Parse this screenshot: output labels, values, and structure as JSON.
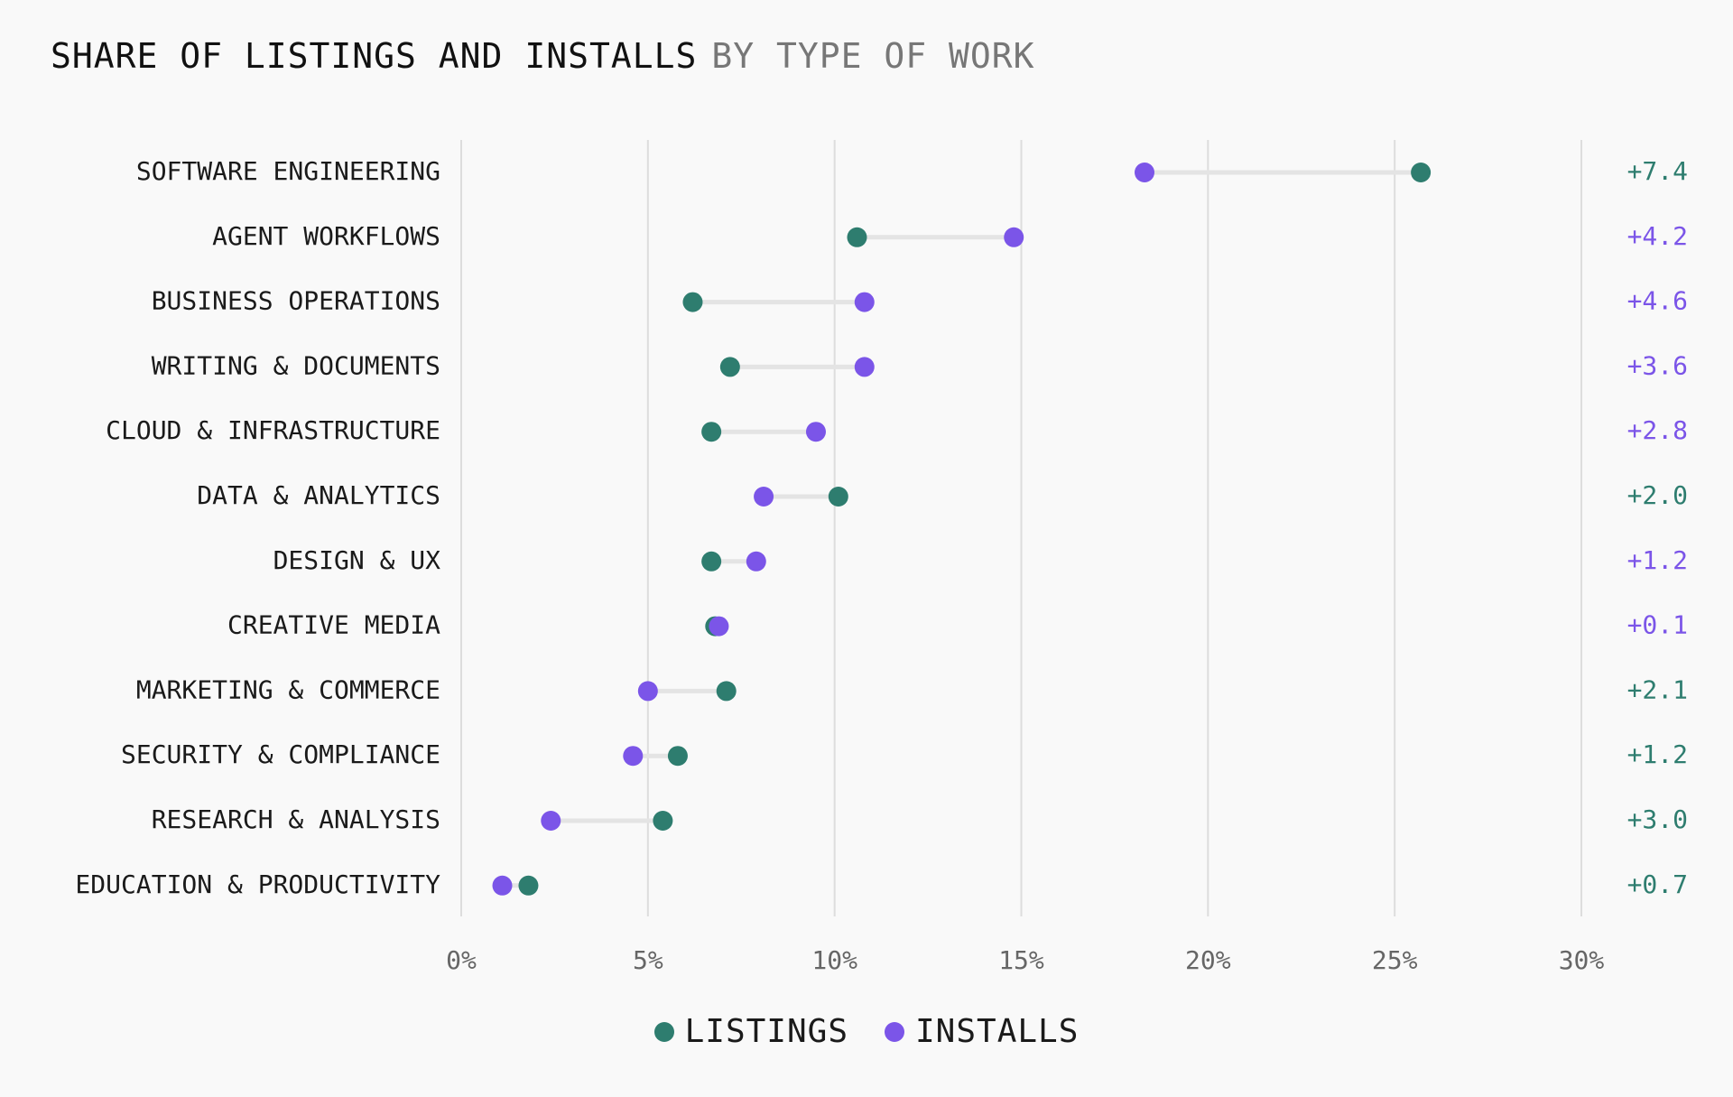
{
  "title": {
    "main": "SHARE OF LISTINGS AND INSTALLS",
    "sub": "BY TYPE OF WORK"
  },
  "colors": {
    "listings": "#2e7d6f",
    "installs": "#7b55e8",
    "connector": "#e4e4e4",
    "grid": "#dddddd"
  },
  "legend": {
    "listings_label": "LISTINGS",
    "installs_label": "INSTALLS"
  },
  "chart_data": {
    "type": "dumbbell",
    "title": "SHARE OF LISTINGS AND INSTALLS BY TYPE OF WORK",
    "xlabel": "",
    "ylabel": "",
    "xlim": [
      0,
      30
    ],
    "x_ticks": [
      0,
      5,
      10,
      15,
      20,
      25,
      30
    ],
    "x_tick_labels": [
      "0%",
      "5%",
      "10%",
      "15%",
      "20%",
      "25%",
      "30%"
    ],
    "grid": true,
    "legend_position": "bottom-center",
    "categories": [
      "SOFTWARE ENGINEERING",
      "AGENT WORKFLOWS",
      "BUSINESS OPERATIONS",
      "WRITING & DOCUMENTS",
      "CLOUD & INFRASTRUCTURE",
      "DATA & ANALYTICS",
      "DESIGN & UX",
      "CREATIVE MEDIA",
      "MARKETING & COMMERCE",
      "SECURITY & COMPLIANCE",
      "RESEARCH & ANALYSIS",
      "EDUCATION & PRODUCTIVITY"
    ],
    "series": [
      {
        "name": "LISTINGS",
        "values": [
          25.7,
          10.6,
          6.2,
          7.2,
          6.7,
          10.1,
          6.7,
          6.8,
          7.1,
          5.8,
          5.4,
          1.8
        ]
      },
      {
        "name": "INSTALLS",
        "values": [
          18.3,
          14.8,
          10.8,
          10.8,
          9.5,
          8.1,
          7.9,
          6.9,
          5.0,
          4.6,
          2.4,
          1.1
        ]
      }
    ],
    "differences": [
      "+7.4",
      "+4.2",
      "+4.6",
      "+3.6",
      "+2.8",
      "+2.0",
      "+1.2",
      "+0.1",
      "+2.1",
      "+1.2",
      "+3.0",
      "+0.7"
    ],
    "difference_leader": [
      "LISTINGS",
      "INSTALLS",
      "INSTALLS",
      "INSTALLS",
      "INSTALLS",
      "LISTINGS",
      "INSTALLS",
      "INSTALLS",
      "LISTINGS",
      "LISTINGS",
      "LISTINGS",
      "LISTINGS"
    ]
  }
}
